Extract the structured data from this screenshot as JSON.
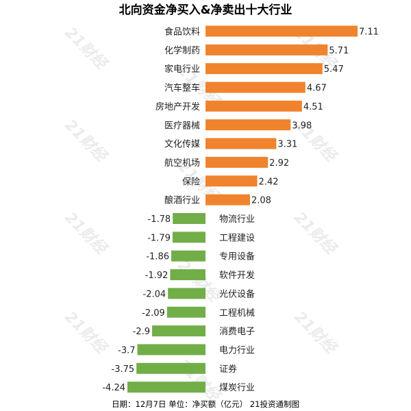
{
  "chart_data": {
    "type": "bar",
    "orientation": "horizontal",
    "title": "北向资金净买入&净卖出十大行业",
    "categories": [
      "食品饮料",
      "化学制药",
      "家电行业",
      "汽车整车",
      "房地产开发",
      "医疗器械",
      "文化传媒",
      "航空机场",
      "保险",
      "酿酒行业",
      "物流行业",
      "工程建设",
      "专用设备",
      "软件开发",
      "光伏设备",
      "工程机械",
      "消费电子",
      "电力行业",
      "证券",
      "煤炭行业"
    ],
    "values": [
      7.11,
      5.71,
      5.47,
      4.67,
      4.51,
      3.98,
      3.31,
      2.92,
      2.42,
      2.08,
      -1.78,
      -1.79,
      -1.86,
      -1.92,
      -2.04,
      -2.09,
      -2.9,
      -3.7,
      -3.75,
      -4.24
    ],
    "value_labels": [
      "7.11",
      "5.71",
      "5.47",
      "4.67",
      "4.51",
      "3.98",
      "3.31",
      "2.92",
      "2.42",
      "2.08",
      "-1.78",
      "-1.79",
      "-1.86",
      "-1.92",
      "-2.04",
      "-2.09",
      "-2.9",
      "-3.7",
      "-3.75",
      "-4.24"
    ],
    "colors": {
      "positive": "#F0832D",
      "negative": "#71AE48"
    },
    "xlim": [
      -4.24,
      7.11
    ],
    "grid": false,
    "legend": "none",
    "source_note": "日期：12月7日 单位：净买额（亿元） 21投资通制图",
    "watermark": "21财经"
  }
}
